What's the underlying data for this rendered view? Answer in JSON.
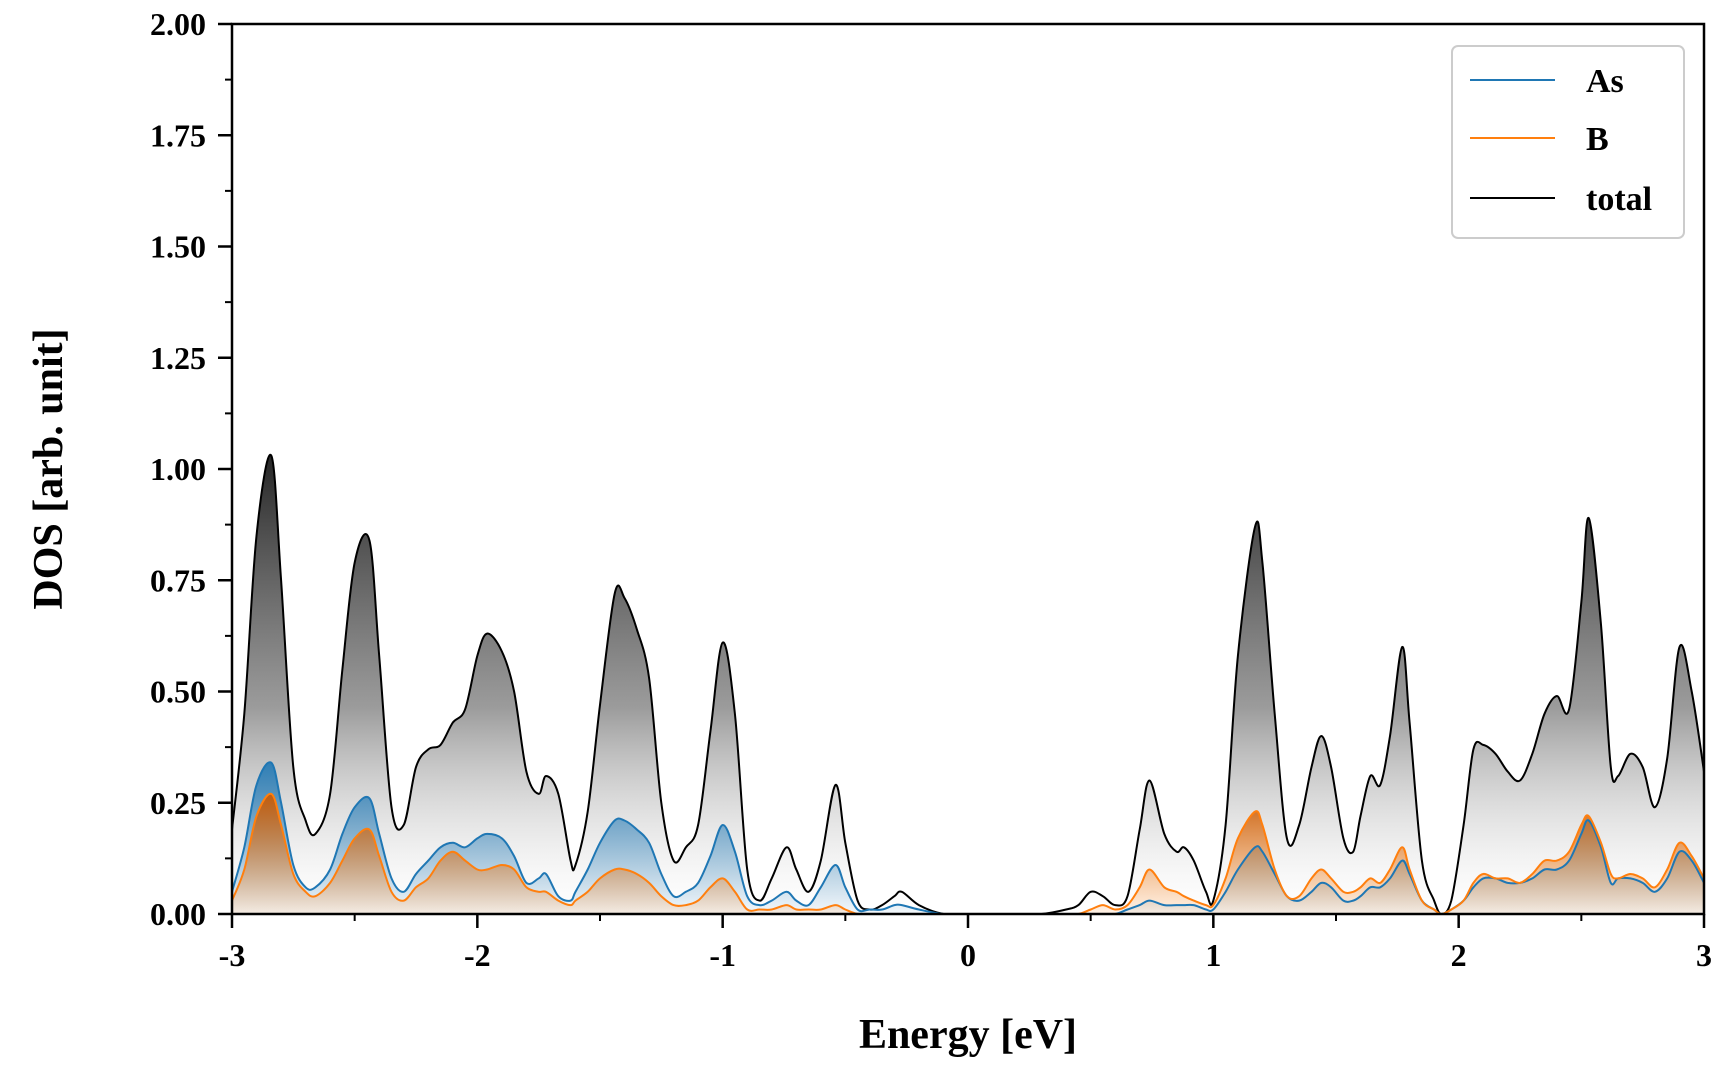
{
  "chart_data": {
    "type": "line",
    "xlabel": "Energy [eV]",
    "ylabel": "DOS [arb. unit]",
    "xlim": [
      -3,
      3
    ],
    "ylim": [
      0,
      2
    ],
    "xticks": [
      -3,
      -2,
      -1,
      0,
      1,
      2,
      3
    ],
    "xtick_labels": [
      "-3",
      "-2",
      "-1",
      "0",
      "1",
      "2",
      "3"
    ],
    "yticks": [
      0,
      0.25,
      0.5,
      0.75,
      1.0,
      1.25,
      1.5,
      1.75,
      2.0
    ],
    "ytick_labels": [
      "0.00",
      "0.25",
      "0.50",
      "0.75",
      "1.00",
      "1.25",
      "1.50",
      "1.75",
      "2.00"
    ],
    "grid": false,
    "legend": "top-right",
    "x": [
      -3.0,
      -2.95,
      -2.9,
      -2.84,
      -2.8,
      -2.75,
      -2.7,
      -2.66,
      -2.6,
      -2.55,
      -2.5,
      -2.44,
      -2.4,
      -2.35,
      -2.3,
      -2.25,
      -2.2,
      -2.15,
      -2.1,
      -2.05,
      -2.0,
      -1.96,
      -1.9,
      -1.85,
      -1.8,
      -1.75,
      -1.72,
      -1.67,
      -1.62,
      -1.6,
      -1.55,
      -1.5,
      -1.44,
      -1.4,
      -1.35,
      -1.3,
      -1.25,
      -1.2,
      -1.15,
      -1.1,
      -1.05,
      -1.0,
      -0.95,
      -0.9,
      -0.85,
      -0.8,
      -0.74,
      -0.7,
      -0.65,
      -0.6,
      -0.54,
      -0.5,
      -0.45,
      -0.4,
      -0.35,
      -0.3,
      -0.27,
      -0.2,
      -0.1,
      0.0,
      0.1,
      0.2,
      0.3,
      0.4,
      0.45,
      0.5,
      0.55,
      0.6,
      0.65,
      0.7,
      0.74,
      0.8,
      0.85,
      0.88,
      0.92,
      0.97,
      1.0,
      1.05,
      1.1,
      1.17,
      1.2,
      1.25,
      1.3,
      1.35,
      1.4,
      1.44,
      1.48,
      1.53,
      1.57,
      1.6,
      1.64,
      1.68,
      1.72,
      1.77,
      1.8,
      1.85,
      1.9,
      1.93,
      1.97,
      2.02,
      2.06,
      2.1,
      2.15,
      2.2,
      2.25,
      2.3,
      2.35,
      2.4,
      2.45,
      2.5,
      2.53,
      2.58,
      2.62,
      2.65,
      2.7,
      2.75,
      2.8,
      2.85,
      2.9,
      2.95,
      3.0
    ],
    "series": [
      {
        "name": "As",
        "color": "#1f77b4",
        "values": [
          0.05,
          0.15,
          0.29,
          0.34,
          0.25,
          0.11,
          0.06,
          0.06,
          0.1,
          0.18,
          0.24,
          0.26,
          0.18,
          0.08,
          0.05,
          0.09,
          0.12,
          0.15,
          0.16,
          0.15,
          0.17,
          0.18,
          0.17,
          0.13,
          0.07,
          0.08,
          0.09,
          0.04,
          0.03,
          0.05,
          0.1,
          0.16,
          0.21,
          0.21,
          0.19,
          0.16,
          0.09,
          0.04,
          0.05,
          0.07,
          0.13,
          0.2,
          0.14,
          0.04,
          0.02,
          0.03,
          0.05,
          0.03,
          0.02,
          0.06,
          0.11,
          0.06,
          0.01,
          0.01,
          0.01,
          0.02,
          0.02,
          0.01,
          0.0,
          0.0,
          0.0,
          0.0,
          0.0,
          0.0,
          0.0,
          0.0,
          0.0,
          0.0,
          0.01,
          0.02,
          0.03,
          0.02,
          0.02,
          0.02,
          0.02,
          0.01,
          0.01,
          0.05,
          0.1,
          0.15,
          0.14,
          0.09,
          0.04,
          0.03,
          0.05,
          0.07,
          0.06,
          0.03,
          0.03,
          0.04,
          0.06,
          0.06,
          0.08,
          0.12,
          0.09,
          0.03,
          0.01,
          0.0,
          0.01,
          0.03,
          0.06,
          0.08,
          0.08,
          0.07,
          0.07,
          0.08,
          0.1,
          0.1,
          0.12,
          0.18,
          0.21,
          0.15,
          0.07,
          0.08,
          0.08,
          0.07,
          0.05,
          0.08,
          0.14,
          0.12,
          0.07
        ]
      },
      {
        "name": "B",
        "color": "#ff7f0e",
        "values": [
          0.03,
          0.1,
          0.22,
          0.27,
          0.2,
          0.09,
          0.05,
          0.04,
          0.07,
          0.12,
          0.17,
          0.19,
          0.13,
          0.05,
          0.03,
          0.06,
          0.08,
          0.12,
          0.14,
          0.12,
          0.1,
          0.1,
          0.11,
          0.1,
          0.06,
          0.05,
          0.05,
          0.03,
          0.02,
          0.03,
          0.05,
          0.08,
          0.1,
          0.1,
          0.09,
          0.07,
          0.04,
          0.02,
          0.02,
          0.03,
          0.06,
          0.08,
          0.05,
          0.01,
          0.01,
          0.01,
          0.02,
          0.01,
          0.01,
          0.01,
          0.02,
          0.01,
          0.0,
          0.0,
          0.0,
          0.0,
          0.0,
          0.0,
          0.0,
          0.0,
          0.0,
          0.0,
          0.0,
          0.0,
          0.0,
          0.01,
          0.02,
          0.01,
          0.02,
          0.06,
          0.1,
          0.06,
          0.05,
          0.04,
          0.03,
          0.02,
          0.02,
          0.08,
          0.17,
          0.23,
          0.2,
          0.1,
          0.04,
          0.04,
          0.08,
          0.1,
          0.08,
          0.05,
          0.05,
          0.06,
          0.08,
          0.07,
          0.1,
          0.15,
          0.1,
          0.03,
          0.01,
          0.0,
          0.01,
          0.03,
          0.07,
          0.09,
          0.08,
          0.08,
          0.07,
          0.09,
          0.12,
          0.12,
          0.14,
          0.2,
          0.22,
          0.16,
          0.09,
          0.08,
          0.09,
          0.08,
          0.06,
          0.1,
          0.16,
          0.13,
          0.08
        ]
      },
      {
        "name": "total",
        "color": "#000000",
        "values": [
          0.19,
          0.45,
          0.85,
          1.03,
          0.75,
          0.33,
          0.21,
          0.18,
          0.27,
          0.55,
          0.79,
          0.84,
          0.58,
          0.24,
          0.2,
          0.33,
          0.37,
          0.38,
          0.43,
          0.46,
          0.58,
          0.63,
          0.59,
          0.5,
          0.32,
          0.27,
          0.31,
          0.27,
          0.12,
          0.11,
          0.23,
          0.47,
          0.72,
          0.71,
          0.64,
          0.53,
          0.25,
          0.12,
          0.15,
          0.2,
          0.41,
          0.61,
          0.45,
          0.1,
          0.03,
          0.08,
          0.15,
          0.1,
          0.05,
          0.12,
          0.29,
          0.16,
          0.03,
          0.01,
          0.02,
          0.04,
          0.05,
          0.02,
          0.0,
          0.0,
          0.0,
          0.0,
          0.0,
          0.01,
          0.02,
          0.05,
          0.04,
          0.02,
          0.04,
          0.19,
          0.3,
          0.18,
          0.14,
          0.15,
          0.12,
          0.05,
          0.03,
          0.2,
          0.58,
          0.87,
          0.79,
          0.45,
          0.17,
          0.2,
          0.33,
          0.4,
          0.33,
          0.17,
          0.14,
          0.22,
          0.31,
          0.29,
          0.4,
          0.6,
          0.43,
          0.12,
          0.03,
          0.0,
          0.03,
          0.2,
          0.37,
          0.38,
          0.36,
          0.32,
          0.3,
          0.36,
          0.45,
          0.49,
          0.46,
          0.7,
          0.89,
          0.65,
          0.33,
          0.31,
          0.36,
          0.33,
          0.24,
          0.35,
          0.6,
          0.5,
          0.32
        ]
      }
    ]
  }
}
